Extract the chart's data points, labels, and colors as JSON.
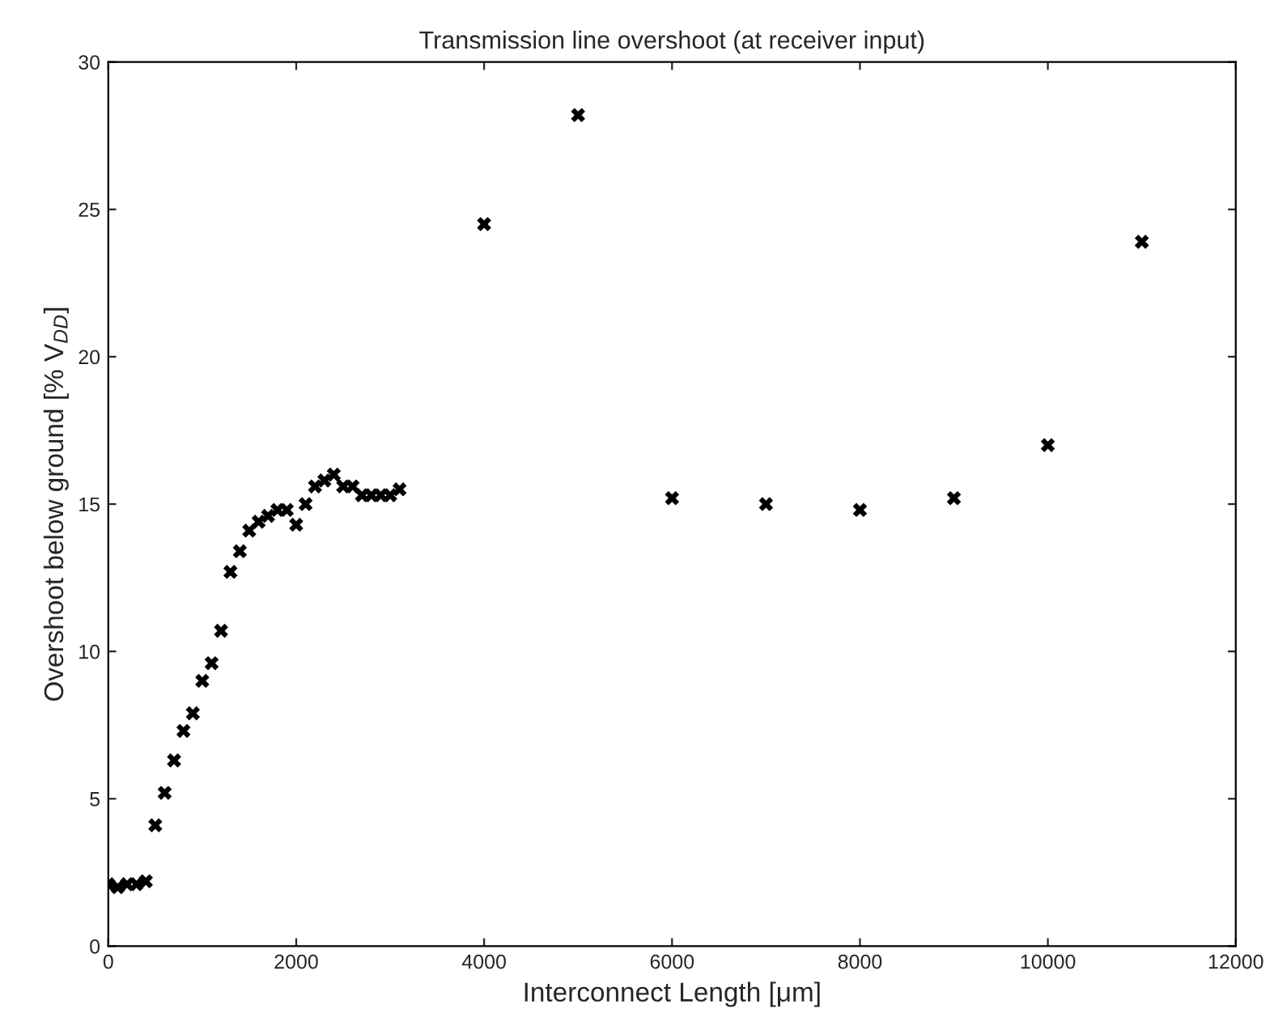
{
  "chart_data": {
    "type": "scatter",
    "title": "Transmission line overshoot (at receiver input)",
    "xlabel": "Interconnect Length [μm]",
    "ylabel": "Overshoot below ground [% V$_{DD}$]",
    "x": [
      0,
      100,
      200,
      300,
      400,
      500,
      600,
      700,
      800,
      900,
      1000,
      1100,
      1200,
      1300,
      1400,
      1500,
      1600,
      1700,
      1800,
      1900,
      2000,
      2100,
      2200,
      2300,
      2400,
      2500,
      2600,
      2700,
      2800,
      2900,
      3000,
      3100,
      4000,
      5000,
      6000,
      7000,
      8000,
      9000,
      10000,
      11000
    ],
    "series": [
      {
        "color": "#000000",
        "values": [
          2.1,
          2.0,
          2.1,
          2.1,
          2.2,
          4.1,
          5.2,
          6.3,
          7.3,
          7.9,
          9.0,
          9.6,
          10.7,
          12.7,
          13.4,
          14.1,
          14.4,
          14.6,
          14.8,
          14.8,
          14.3,
          15.0,
          15.6,
          15.8,
          16.0,
          15.6,
          15.6,
          15.3,
          15.3,
          15.3,
          15.3,
          15.5,
          24.5,
          28.2,
          15.2,
          15.0,
          14.8,
          15.2,
          17.0,
          23.9
        ]
      }
    ],
    "xlim": [
      0,
      12000
    ],
    "ylim": [
      0,
      30
    ],
    "xticks": [
      0,
      2000,
      4000,
      6000,
      8000,
      10000,
      12000
    ],
    "yticks": [
      0,
      5,
      10,
      15,
      20,
      25,
      30
    ],
    "marker": "cross",
    "grid": false,
    "legend": false
  }
}
